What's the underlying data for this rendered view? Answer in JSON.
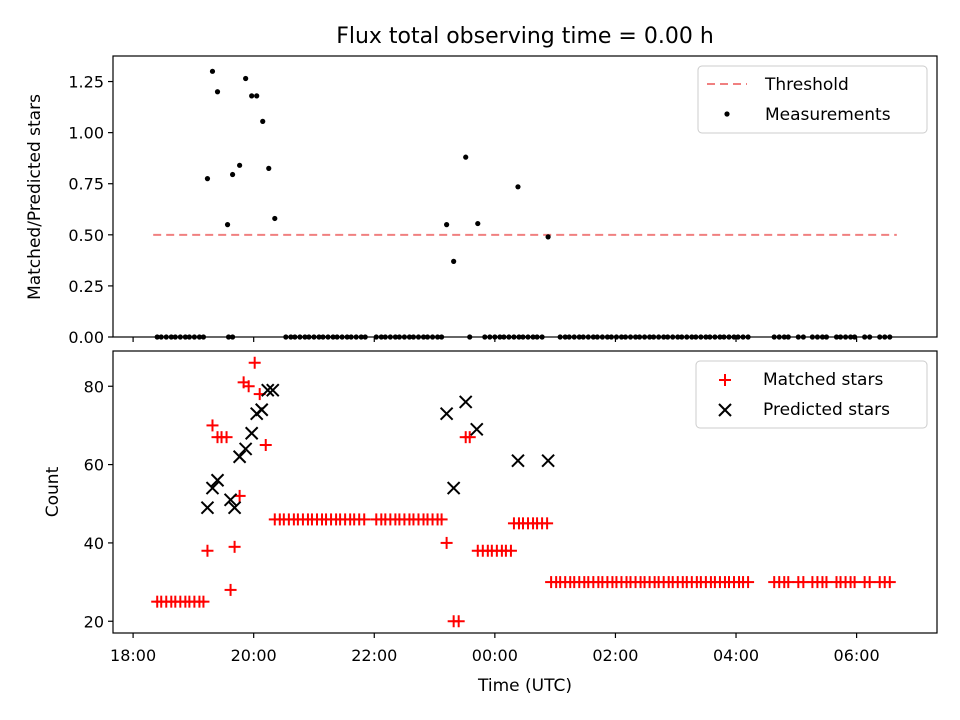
{
  "chart_data": [
    {
      "type": "scatter",
      "title": "Flux total observing time = 0.00 h",
      "xlabel": "",
      "ylabel": "Matched/Predicted stars",
      "xlim": [
        "17:40",
        "07:20"
      ],
      "ylim": [
        0,
        1.375
      ],
      "yticks": [
        0.0,
        0.25,
        0.5,
        0.75,
        1.0,
        1.25
      ],
      "ytick_labels": [
        "0.00",
        "0.25",
        "0.50",
        "0.75",
        "1.00",
        "1.25"
      ],
      "legend": {
        "position": "top-right",
        "entries": [
          "Threshold",
          "Measurements"
        ]
      },
      "threshold": {
        "name": "Threshold",
        "y": 0.5,
        "x_range": [
          "18:20",
          "06:40"
        ],
        "color": "#f08080",
        "style": "dashed"
      },
      "measurements": {
        "name": "Measurements",
        "color": "#000000",
        "points": [
          [
            "19:14",
            0.775
          ],
          [
            "19:19",
            1.3
          ],
          [
            "19:24",
            1.2
          ],
          [
            "19:34",
            0.55
          ],
          [
            "19:39",
            0.795
          ],
          [
            "19:46",
            0.84
          ],
          [
            "19:52",
            1.265
          ],
          [
            "19:58",
            1.18
          ],
          [
            "20:03",
            1.18
          ],
          [
            "20:09",
            1.055
          ],
          [
            "20:15",
            0.825
          ],
          [
            "20:21",
            0.58
          ],
          [
            "23:12",
            0.55
          ],
          [
            "23:19",
            0.37
          ],
          [
            "23:31",
            0.88
          ],
          [
            "23:43",
            0.555
          ],
          [
            "00:23",
            0.735
          ],
          [
            "00:53",
            0.49
          ]
        ],
        "zero_points": [
          "18:24",
          "18:28",
          "18:33",
          "18:38",
          "18:42",
          "18:47",
          "18:52",
          "18:56",
          "19:01",
          "19:06",
          "19:10",
          "19:35",
          "19:39",
          "20:32",
          "20:37",
          "20:41",
          "20:46",
          "20:51",
          "20:55",
          "21:00",
          "21:05",
          "21:09",
          "21:14",
          "21:19",
          "21:23",
          "21:28",
          "21:33",
          "21:37",
          "21:42",
          "21:47",
          "21:51",
          "22:02",
          "22:07",
          "22:11",
          "22:16",
          "22:21",
          "22:25",
          "22:30",
          "22:35",
          "22:39",
          "22:44",
          "22:49",
          "22:53",
          "22:58",
          "23:03",
          "23:07",
          "23:35",
          "23:50",
          "23:55",
          "00:00",
          "00:05",
          "00:09",
          "00:14",
          "00:19",
          "00:24",
          "00:28",
          "00:33",
          "00:38",
          "00:42",
          "00:47",
          "01:05",
          "01:10",
          "01:14",
          "01:19",
          "01:24",
          "01:28",
          "01:33",
          "01:38",
          "01:42",
          "01:47",
          "01:52",
          "01:56",
          "02:01",
          "02:06",
          "02:10",
          "02:15",
          "02:20",
          "02:24",
          "02:29",
          "02:34",
          "02:38",
          "02:43",
          "02:48",
          "02:52",
          "02:57",
          "03:02",
          "03:06",
          "03:11",
          "03:16",
          "03:20",
          "03:25",
          "03:30",
          "03:34",
          "03:39",
          "03:44",
          "03:48",
          "03:53",
          "03:58",
          "04:02",
          "04:07",
          "04:12",
          "04:38",
          "04:43",
          "04:48",
          "04:52",
          "05:02",
          "05:07",
          "05:16",
          "05:21",
          "05:26",
          "05:30",
          "05:40",
          "05:44",
          "05:49",
          "05:54",
          "05:58",
          "06:08",
          "06:13",
          "06:23",
          "06:28",
          "06:33"
        ]
      }
    },
    {
      "type": "scatter",
      "title": "",
      "xlabel": "Time (UTC)",
      "ylabel": "Count",
      "xlim": [
        "17:40",
        "07:20"
      ],
      "ylim": [
        17,
        89
      ],
      "xticks": [
        "18:00",
        "20:00",
        "22:00",
        "00:00",
        "02:00",
        "04:00",
        "06:00"
      ],
      "yticks": [
        20,
        40,
        60,
        80
      ],
      "ytick_labels": [
        "20",
        "40",
        "60",
        "80"
      ],
      "legend": {
        "position": "top-right",
        "entries": [
          "Matched stars",
          "Predicted stars"
        ]
      },
      "matched": {
        "name": "Matched stars",
        "color": "#ff0000",
        "marker": "plus",
        "points": [
          [
            "18:24",
            25
          ],
          [
            "18:28",
            25
          ],
          [
            "18:33",
            25
          ],
          [
            "18:38",
            25
          ],
          [
            "18:42",
            25
          ],
          [
            "18:47",
            25
          ],
          [
            "18:52",
            25
          ],
          [
            "18:56",
            25
          ],
          [
            "19:01",
            25
          ],
          [
            "19:06",
            25
          ],
          [
            "19:10",
            25
          ],
          [
            "19:14",
            38
          ],
          [
            "19:19",
            70
          ],
          [
            "19:24",
            67
          ],
          [
            "19:28",
            67
          ],
          [
            "19:33",
            67
          ],
          [
            "19:37",
            28
          ],
          [
            "19:41",
            39
          ],
          [
            "19:46",
            52
          ],
          [
            "19:50",
            81
          ],
          [
            "19:55",
            80
          ],
          [
            "20:01",
            86
          ],
          [
            "20:06",
            78
          ],
          [
            "20:12",
            65
          ],
          [
            "20:21",
            46
          ],
          [
            "20:26",
            46
          ],
          [
            "20:30",
            46
          ],
          [
            "20:35",
            46
          ],
          [
            "20:40",
            46
          ],
          [
            "20:44",
            46
          ],
          [
            "20:49",
            46
          ],
          [
            "20:54",
            46
          ],
          [
            "20:58",
            46
          ],
          [
            "21:03",
            46
          ],
          [
            "21:08",
            46
          ],
          [
            "21:12",
            46
          ],
          [
            "21:17",
            46
          ],
          [
            "21:22",
            46
          ],
          [
            "21:26",
            46
          ],
          [
            "21:31",
            46
          ],
          [
            "21:36",
            46
          ],
          [
            "21:40",
            46
          ],
          [
            "21:45",
            46
          ],
          [
            "21:50",
            46
          ],
          [
            "22:02",
            46
          ],
          [
            "22:07",
            46
          ],
          [
            "22:11",
            46
          ],
          [
            "22:16",
            46
          ],
          [
            "22:21",
            46
          ],
          [
            "22:25",
            46
          ],
          [
            "22:30",
            46
          ],
          [
            "22:35",
            46
          ],
          [
            "22:39",
            46
          ],
          [
            "22:44",
            46
          ],
          [
            "22:49",
            46
          ],
          [
            "22:53",
            46
          ],
          [
            "22:58",
            46
          ],
          [
            "23:03",
            46
          ],
          [
            "23:07",
            46
          ],
          [
            "23:12",
            40
          ],
          [
            "23:19",
            20
          ],
          [
            "23:24",
            20
          ],
          [
            "23:31",
            67
          ],
          [
            "23:35",
            67
          ],
          [
            "23:43",
            38
          ],
          [
            "23:48",
            38
          ],
          [
            "23:53",
            38
          ],
          [
            "23:57",
            38
          ],
          [
            "00:02",
            38
          ],
          [
            "00:07",
            38
          ],
          [
            "00:11",
            38
          ],
          [
            "00:16",
            38
          ],
          [
            "00:19",
            45
          ],
          [
            "00:24",
            45
          ],
          [
            "00:28",
            45
          ],
          [
            "00:33",
            45
          ],
          [
            "00:38",
            45
          ],
          [
            "00:42",
            45
          ],
          [
            "00:47",
            45
          ],
          [
            "00:52",
            45
          ],
          [
            "00:56",
            30
          ],
          [
            "01:01",
            30
          ],
          [
            "01:05",
            30
          ],
          [
            "01:10",
            30
          ],
          [
            "01:15",
            30
          ],
          [
            "01:19",
            30
          ],
          [
            "01:24",
            30
          ],
          [
            "01:29",
            30
          ],
          [
            "01:33",
            30
          ],
          [
            "01:38",
            30
          ],
          [
            "01:43",
            30
          ],
          [
            "01:47",
            30
          ],
          [
            "01:52",
            30
          ],
          [
            "01:57",
            30
          ],
          [
            "02:01",
            30
          ],
          [
            "02:06",
            30
          ],
          [
            "02:11",
            30
          ],
          [
            "02:15",
            30
          ],
          [
            "02:20",
            30
          ],
          [
            "02:25",
            30
          ],
          [
            "02:29",
            30
          ],
          [
            "02:34",
            30
          ],
          [
            "02:39",
            30
          ],
          [
            "02:43",
            30
          ],
          [
            "02:48",
            30
          ],
          [
            "02:53",
            30
          ],
          [
            "02:57",
            30
          ],
          [
            "03:02",
            30
          ],
          [
            "03:07",
            30
          ],
          [
            "03:11",
            30
          ],
          [
            "03:16",
            30
          ],
          [
            "03:21",
            30
          ],
          [
            "03:25",
            30
          ],
          [
            "03:30",
            30
          ],
          [
            "03:35",
            30
          ],
          [
            "03:39",
            30
          ],
          [
            "03:44",
            30
          ],
          [
            "03:49",
            30
          ],
          [
            "03:53",
            30
          ],
          [
            "03:58",
            30
          ],
          [
            "04:03",
            30
          ],
          [
            "04:07",
            30
          ],
          [
            "04:12",
            30
          ],
          [
            "04:38",
            30
          ],
          [
            "04:43",
            30
          ],
          [
            "04:48",
            30
          ],
          [
            "04:52",
            30
          ],
          [
            "05:02",
            30
          ],
          [
            "05:07",
            30
          ],
          [
            "05:16",
            30
          ],
          [
            "05:21",
            30
          ],
          [
            "05:26",
            30
          ],
          [
            "05:30",
            30
          ],
          [
            "05:40",
            30
          ],
          [
            "05:44",
            30
          ],
          [
            "05:49",
            30
          ],
          [
            "05:54",
            30
          ],
          [
            "05:58",
            30
          ],
          [
            "06:08",
            30
          ],
          [
            "06:13",
            30
          ],
          [
            "06:23",
            30
          ],
          [
            "06:28",
            30
          ],
          [
            "06:33",
            30
          ]
        ]
      },
      "predicted": {
        "name": "Predicted stars",
        "color": "#000000",
        "marker": "x",
        "points": [
          [
            "19:14",
            49
          ],
          [
            "19:19",
            54
          ],
          [
            "19:24",
            56
          ],
          [
            "19:37",
            51
          ],
          [
            "19:41",
            49
          ],
          [
            "19:46",
            62
          ],
          [
            "19:52",
            64
          ],
          [
            "19:58",
            68
          ],
          [
            "20:03",
            73
          ],
          [
            "20:08",
            74
          ],
          [
            "20:14",
            79
          ],
          [
            "20:19",
            79
          ],
          [
            "23:12",
            73
          ],
          [
            "23:19",
            54
          ],
          [
            "23:31",
            76
          ],
          [
            "23:42",
            69
          ],
          [
            "00:23",
            61
          ],
          [
            "00:53",
            61
          ]
        ]
      }
    }
  ]
}
